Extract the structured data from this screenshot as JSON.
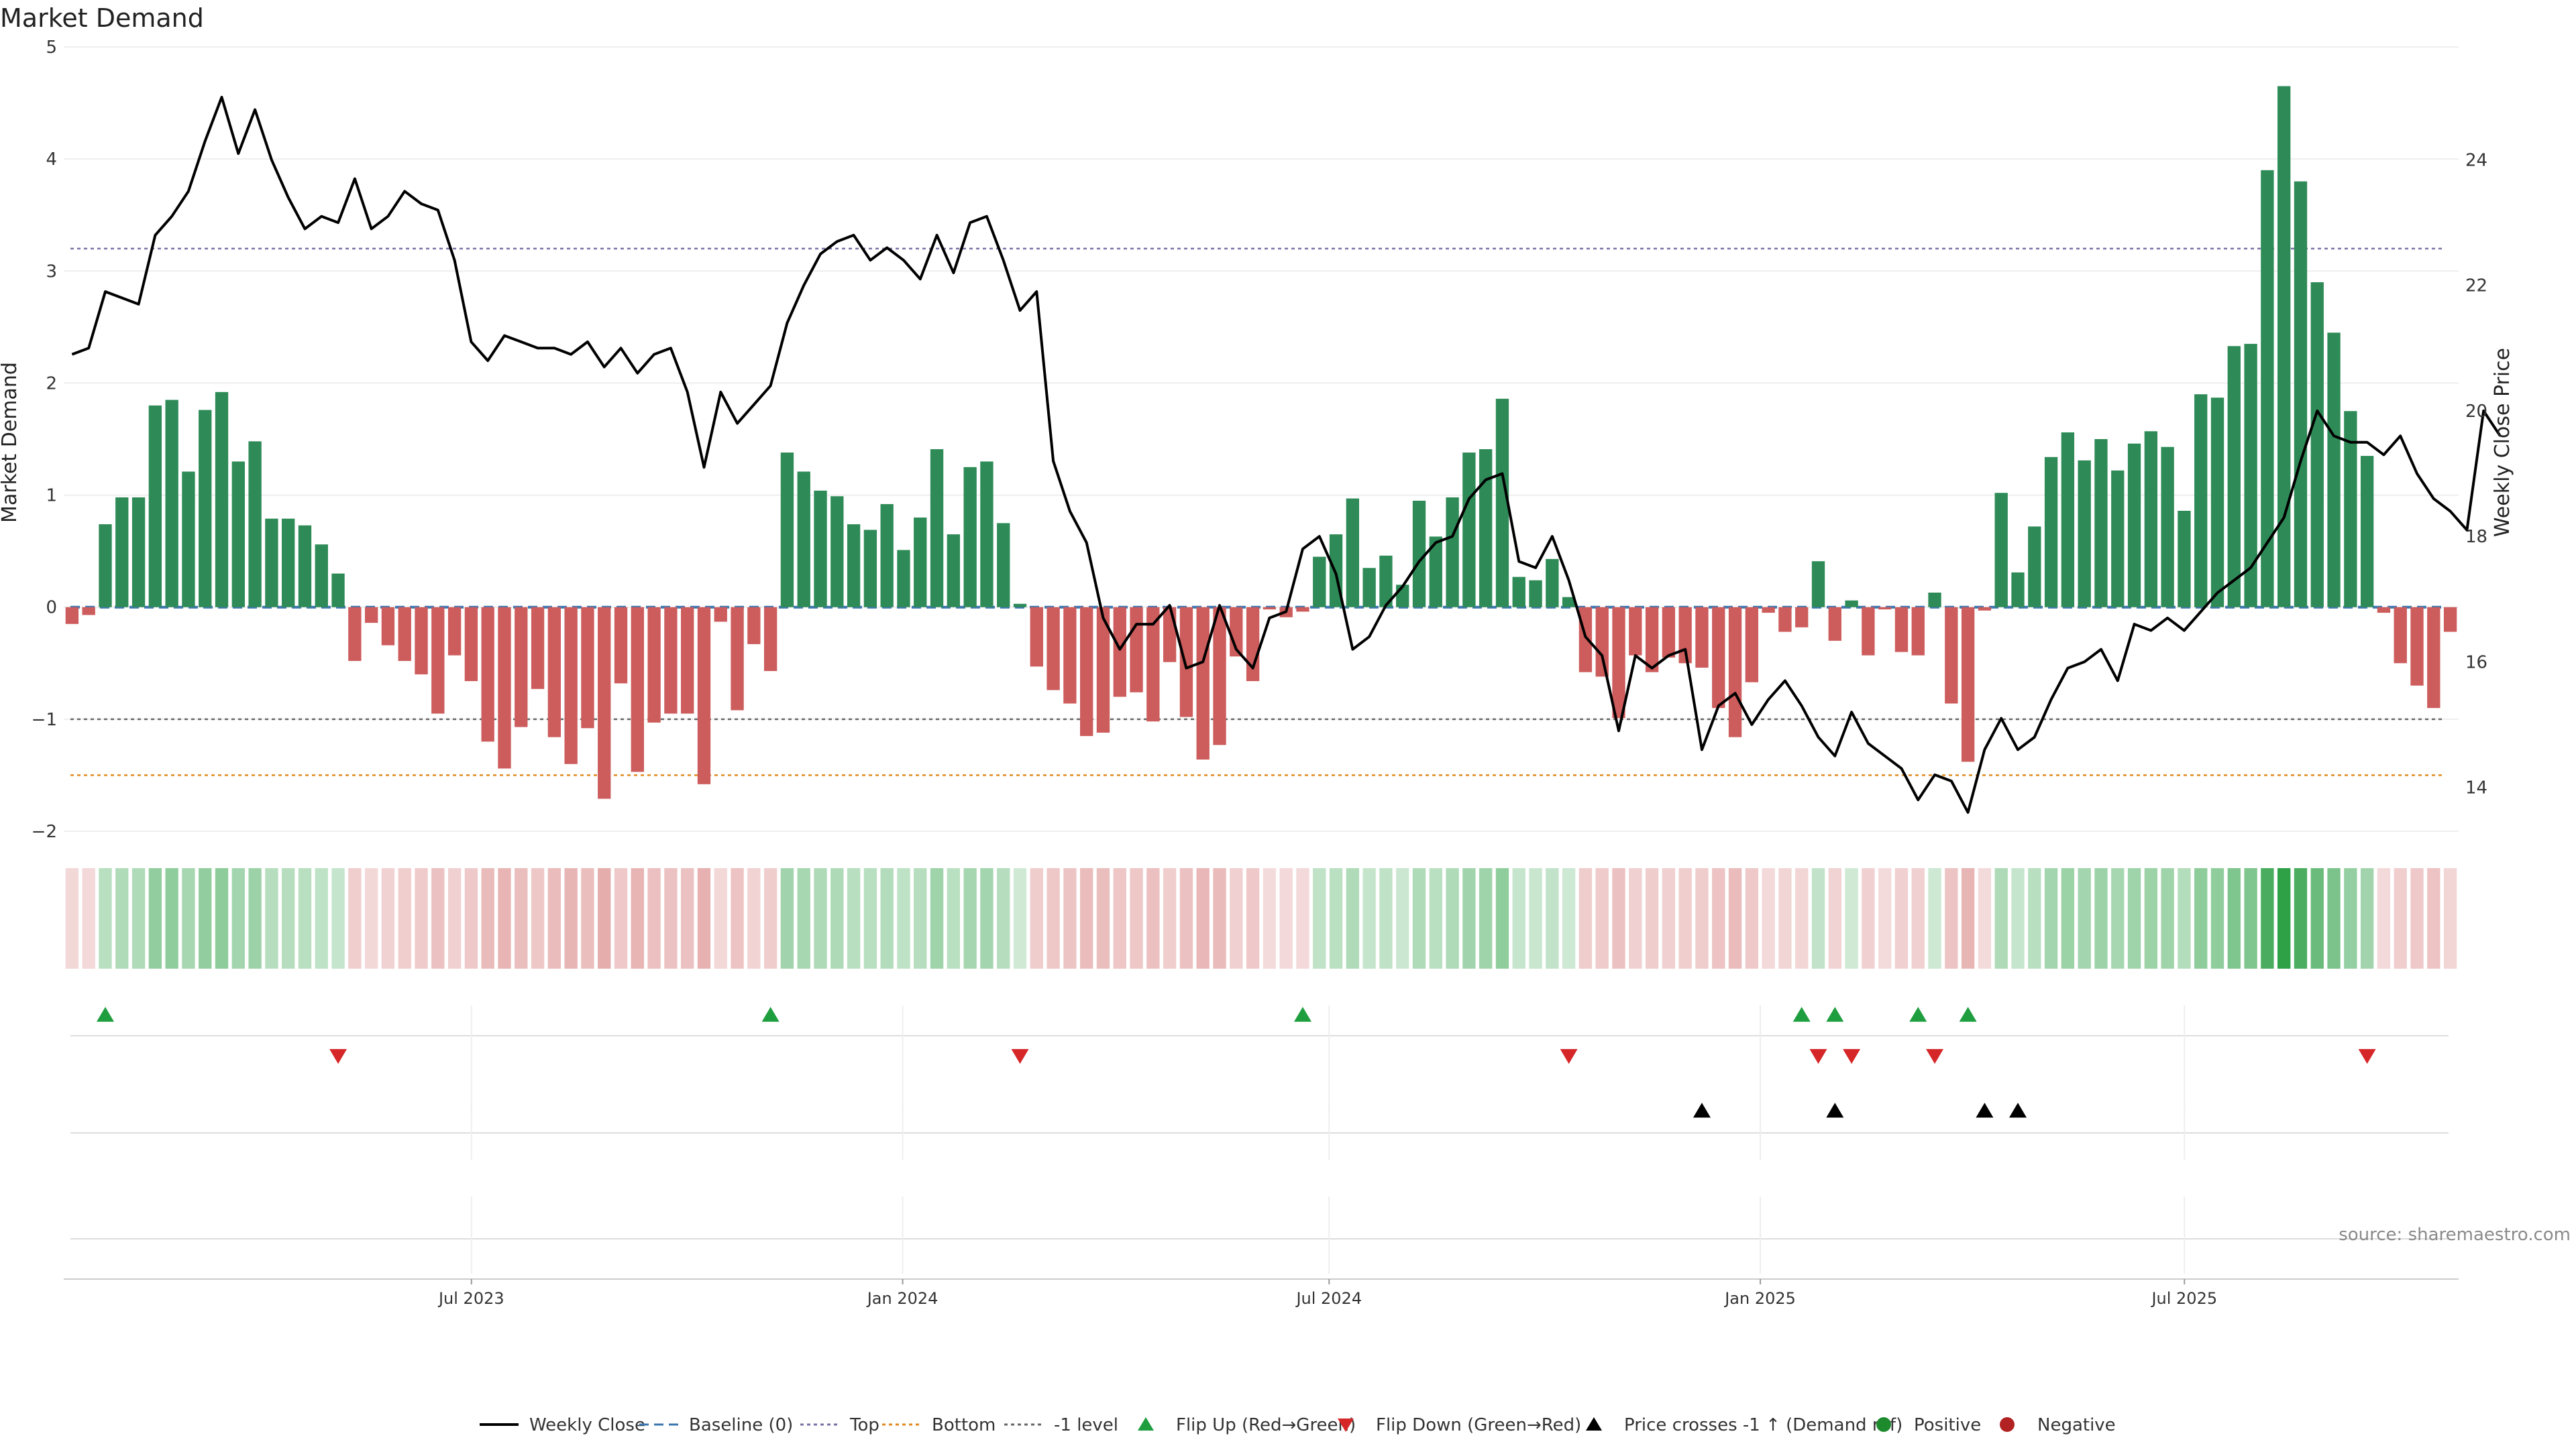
{
  "chart_data": {
    "type": "bar",
    "title": "Market Demand",
    "ylabel": "Market Demand",
    "y2label": "Weekly Close Price",
    "source": "source: sharemaestro.com",
    "ylim": [
      -2,
      5
    ],
    "y2lim": [
      13.3,
      25.8
    ],
    "yticks": [
      -2,
      -1,
      0,
      1,
      2,
      3,
      4,
      5
    ],
    "ytick_labels": [
      "−2",
      "−1",
      "0",
      "1",
      "2",
      "3",
      "4",
      "5"
    ],
    "y2ticks": [
      14,
      16,
      18,
      20,
      22,
      24
    ],
    "y2tick_labels": [
      "14",
      "16",
      "18",
      "20",
      "22",
      "24"
    ],
    "x_start": "2023-01-08",
    "x_end": "2025-10-26",
    "xticks": [
      {
        "date": "2023-07-01",
        "label": "Jul 2023"
      },
      {
        "date": "2024-01-01",
        "label": "Jan 2024"
      },
      {
        "date": "2024-07-01",
        "label": "Jul 2024"
      },
      {
        "date": "2025-01-01",
        "label": "Jan 2025"
      },
      {
        "date": "2025-07-01",
        "label": "Jul 2025"
      }
    ],
    "grid": true,
    "legend_position": "bottom",
    "reference_lines": [
      {
        "name": "Baseline (0)",
        "value": 0,
        "style": "dashed",
        "color": "#3b75af"
      },
      {
        "name": "Top",
        "value": 3.2,
        "style": "dotted",
        "color": "#7b6fa3"
      },
      {
        "name": "Bottom",
        "value": -1.5,
        "style": "dotted",
        "color": "#e08a1e"
      },
      {
        "name": "-1 level",
        "value": -1,
        "style": "dotted",
        "color": "#666666"
      }
    ],
    "colors": {
      "positive": "#2e8b57",
      "negative": "#cd5c5c",
      "flip_up": "#1f9e3f",
      "flip_down": "#d62728",
      "cross": "#000000",
      "price_line": "#000000"
    },
    "demand": [
      -0.15,
      -0.07,
      0.74,
      0.98,
      0.98,
      1.8,
      1.85,
      1.21,
      1.76,
      1.92,
      1.3,
      1.48,
      0.79,
      0.79,
      0.73,
      0.56,
      0.3,
      -0.48,
      -0.14,
      -0.34,
      -0.48,
      -0.6,
      -0.95,
      -0.43,
      -0.66,
      -1.2,
      -1.44,
      -1.07,
      -0.73,
      -1.16,
      -1.4,
      -1.08,
      -1.71,
      -0.68,
      -1.47,
      -1.03,
      -0.95,
      -0.95,
      -1.58,
      -0.13,
      -0.92,
      -0.33,
      -0.57,
      1.38,
      1.21,
      1.04,
      0.99,
      0.74,
      0.69,
      0.92,
      0.51,
      0.8,
      1.41,
      0.65,
      1.25,
      1.3,
      0.75,
      0.03,
      -0.53,
      -0.74,
      -0.86,
      -1.15,
      -1.12,
      -0.8,
      -0.76,
      -1.02,
      -0.49,
      -0.98,
      -1.36,
      -1.23,
      -0.44,
      -0.66,
      -0.02,
      -0.09,
      -0.04,
      0.45,
      0.65,
      0.97,
      0.35,
      0.46,
      0.2,
      0.95,
      0.63,
      0.98,
      1.38,
      1.41,
      1.86,
      0.27,
      0.24,
      0.43,
      0.09,
      -0.58,
      -0.62,
      -0.99,
      -0.43,
      -0.58,
      -0.45,
      -0.5,
      -0.54,
      -0.9,
      -1.16,
      -0.67,
      -0.05,
      -0.22,
      -0.18,
      0.41,
      -0.3,
      0.06,
      -0.43,
      -0.02,
      -0.4,
      -0.43,
      0.13,
      -0.86,
      -1.38,
      -0.03,
      1.02,
      0.31,
      0.72,
      1.34,
      1.56,
      1.31,
      1.5,
      1.22,
      1.46,
      1.57,
      1.43,
      0.86,
      1.9,
      1.87,
      2.33,
      2.35,
      3.9,
      4.65,
      3.8,
      2.9,
      2.45,
      1.75,
      1.35,
      -0.05,
      -0.5,
      -0.7,
      -0.9,
      -0.22
    ],
    "price": [
      20.9,
      21.0,
      21.9,
      21.8,
      21.7,
      22.8,
      23.1,
      23.5,
      24.3,
      25.0,
      24.1,
      24.8,
      24.0,
      23.4,
      22.9,
      23.1,
      23.0,
      23.7,
      22.9,
      23.1,
      23.5,
      23.3,
      23.2,
      22.4,
      21.1,
      20.8,
      21.2,
      21.1,
      21.0,
      21.0,
      20.9,
      21.1,
      20.7,
      21.0,
      20.6,
      20.9,
      21.0,
      20.3,
      19.1,
      20.3,
      19.8,
      20.1,
      20.4,
      21.4,
      22.0,
      22.5,
      22.7,
      22.8,
      22.4,
      22.6,
      22.4,
      22.1,
      22.8,
      22.2,
      23.0,
      23.1,
      22.4,
      21.6,
      21.9,
      19.2,
      18.4,
      17.9,
      16.7,
      16.2,
      16.6,
      16.6,
      16.9,
      15.9,
      16.0,
      16.9,
      16.2,
      15.9,
      16.7,
      16.8,
      17.8,
      18.0,
      17.4,
      16.2,
      16.4,
      16.9,
      17.2,
      17.6,
      17.9,
      18.0,
      18.6,
      18.9,
      19.0,
      17.6,
      17.5,
      18.0,
      17.3,
      16.4,
      16.1,
      14.9,
      16.1,
      15.9,
      16.1,
      16.2,
      14.6,
      15.3,
      15.5,
      15.0,
      15.4,
      15.7,
      15.3,
      14.8,
      14.5,
      15.2,
      14.7,
      14.5,
      14.3,
      13.8,
      14.2,
      14.1,
      13.6,
      14.6,
      15.1,
      14.6,
      14.8,
      15.4,
      15.9,
      16.0,
      16.2,
      15.7,
      16.6,
      16.5,
      16.7,
      16.5,
      16.8,
      17.1,
      17.3,
      17.5,
      17.9,
      18.3,
      19.2,
      20.0,
      19.6,
      19.5,
      19.5,
      19.3,
      19.6,
      19.0,
      18.6,
      18.4,
      18.1,
      20.0,
      19.6
    ],
    "flip_up": [
      2,
      42,
      74,
      104,
      106,
      111,
      114
    ],
    "flip_down": [
      16,
      57,
      90,
      105,
      107,
      112,
      138
    ],
    "cross_up": [
      98,
      106,
      115,
      117
    ],
    "legend": [
      {
        "label": "Weekly Close",
        "kind": "solid-line",
        "color": "#000000"
      },
      {
        "label": "Baseline (0)",
        "kind": "dashed-line",
        "color": "#3b75af"
      },
      {
        "label": "Top",
        "kind": "dotted-line",
        "color": "#7b6fa3"
      },
      {
        "label": "Bottom",
        "kind": "dotted-line",
        "color": "#e08a1e"
      },
      {
        "label": "-1 level",
        "kind": "dotted-line",
        "color": "#666666"
      },
      {
        "label": "Flip Up (Red→Green)",
        "kind": "triangle-up",
        "color": "#1f9e3f"
      },
      {
        "label": "Flip Down (Green→Red)",
        "kind": "triangle-down",
        "color": "#d62728"
      },
      {
        "label": "Price crosses -1 ↑ (Demand ref)",
        "kind": "triangle-up",
        "color": "#000000"
      },
      {
        "label": "Positive",
        "kind": "circle",
        "color": "#1e8a2e"
      },
      {
        "label": "Negative",
        "kind": "circle",
        "color": "#b22222"
      }
    ]
  }
}
